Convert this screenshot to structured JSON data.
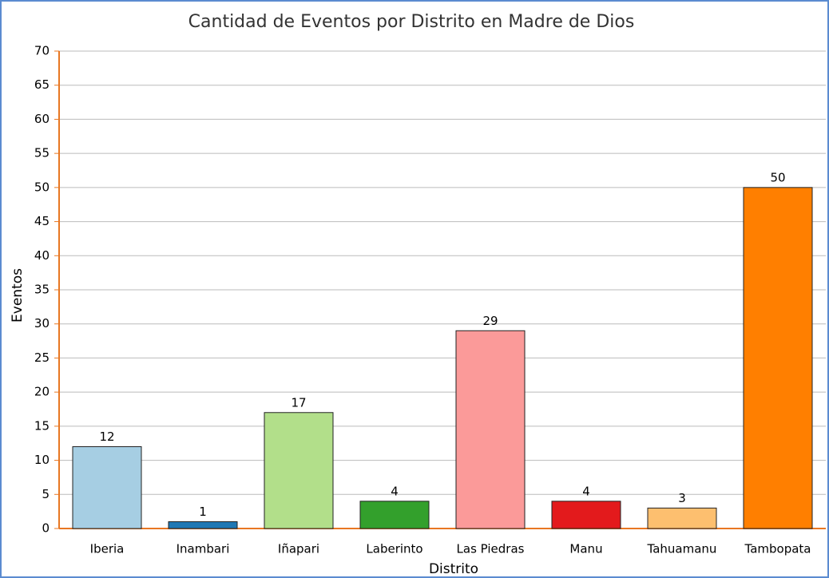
{
  "chart_data": {
    "type": "bar",
    "title": "Cantidad de Eventos por Distrito en Madre de Dios",
    "x_label": "Distrito",
    "y_label": "Eventos",
    "categories": [
      "Iberia",
      "Inambari",
      "Iñapari",
      "Laberinto",
      "Las Piedras",
      "Manu",
      "Tahuamanu",
      "Tambopata"
    ],
    "values": [
      12,
      1,
      17,
      4,
      29,
      4,
      3,
      50
    ],
    "colors": [
      "#a6cee3",
      "#1f78b4",
      "#b2df8a",
      "#33a02c",
      "#fb9a99",
      "#e31a1c",
      "#fdbf6f",
      "#ff7f00"
    ],
    "ylim": [
      0,
      70
    ],
    "yticks": [
      0,
      5,
      10,
      15,
      20,
      25,
      30,
      35,
      40,
      45,
      50,
      55,
      60,
      65,
      70
    ],
    "grid": true
  }
}
